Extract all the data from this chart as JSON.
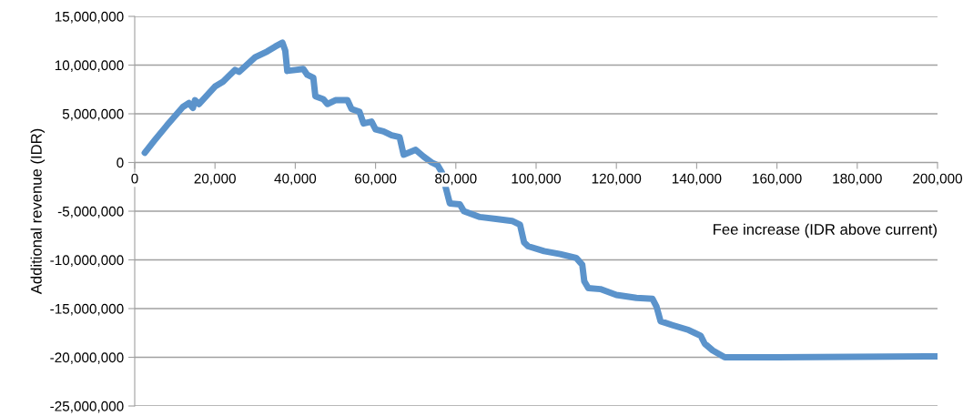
{
  "chart_data": {
    "type": "line",
    "xlabel": "Fee increase (IDR above current)",
    "ylabel": "Additional revenue (IDR)",
    "series": [
      {
        "color": "#5b93cb",
        "x": [
          2500,
          5000,
          8000,
          12000,
          13500,
          14500,
          15000,
          16000,
          20000,
          22000,
          25000,
          26000,
          30000,
          33000,
          35000,
          36800,
          37500,
          38000,
          40000,
          42000,
          43000,
          44500,
          45000,
          47000,
          48000,
          50000,
          53000,
          54000,
          56000,
          57000,
          59000,
          60000,
          62000,
          64000,
          66000,
          67000,
          70000,
          72000,
          74000,
          75500,
          76500,
          78500,
          81000,
          82000,
          86000,
          90000,
          94000,
          96000,
          97000,
          98000,
          102000,
          106000,
          110000,
          111500,
          112000,
          113000,
          116000,
          120000,
          125000,
          129000,
          130000,
          131000,
          134000,
          138000,
          141000,
          142000,
          144000,
          147000,
          160000,
          200000
        ],
        "values": [
          1000000,
          2300000,
          3800000,
          5700000,
          6100000,
          5600000,
          6400000,
          6000000,
          7800000,
          8300000,
          9500000,
          9300000,
          10800000,
          11400000,
          11900000,
          12300000,
          11500000,
          9400000,
          9500000,
          9600000,
          9000000,
          8700000,
          6800000,
          6500000,
          6000000,
          6400000,
          6400000,
          5500000,
          5200000,
          4000000,
          4200000,
          3400000,
          3200000,
          2800000,
          2600000,
          800000,
          1300000,
          600000,
          0,
          -300000,
          -1000000,
          -4200000,
          -4300000,
          -5000000,
          -5600000,
          -5800000,
          -6000000,
          -6400000,
          -8200000,
          -8600000,
          -9100000,
          -9400000,
          -9800000,
          -10500000,
          -12200000,
          -12900000,
          -13000000,
          -13600000,
          -13900000,
          -14000000,
          -14800000,
          -16300000,
          -16700000,
          -17200000,
          -17800000,
          -18600000,
          -19300000,
          -20000000,
          -20000000,
          -19900000
        ]
      }
    ],
    "xlim": [
      0,
      200000
    ],
    "xticks": [
      {
        "value": 0,
        "label": "0"
      },
      {
        "value": 20000,
        "label": "20,000"
      },
      {
        "value": 40000,
        "label": "40,000"
      },
      {
        "value": 60000,
        "label": "60,000"
      },
      {
        "value": 80000,
        "label": "80,000"
      },
      {
        "value": 100000,
        "label": "100,000"
      },
      {
        "value": 120000,
        "label": "120,000"
      },
      {
        "value": 140000,
        "label": "140,000"
      },
      {
        "value": 160000,
        "label": "160,000"
      },
      {
        "value": 180000,
        "label": "180,000"
      },
      {
        "value": 200000,
        "label": "200,000"
      }
    ],
    "ylim": [
      -25000000,
      15000000
    ],
    "yticks": [
      {
        "value": -25000000,
        "label": "-25,000,000"
      },
      {
        "value": -20000000,
        "label": "-20,000,000"
      },
      {
        "value": -15000000,
        "label": "-15,000,000"
      },
      {
        "value": -10000000,
        "label": "-10,000,000"
      },
      {
        "value": -5000000,
        "label": "-5,000,000"
      },
      {
        "value": 0,
        "label": "0"
      },
      {
        "value": 5000000,
        "label": "5,000,000"
      },
      {
        "value": 10000000,
        "label": "10,000,000"
      },
      {
        "value": 15000000,
        "label": "15,000,000"
      }
    ],
    "grid": "y",
    "marker": "none",
    "line_style": "solid",
    "legend": false
  }
}
